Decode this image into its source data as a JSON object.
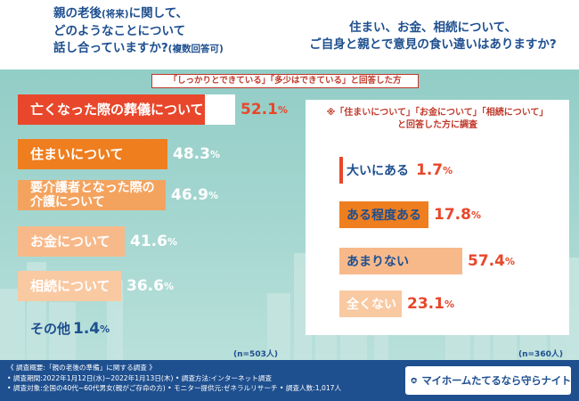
{
  "header": {
    "left_title": "親の老後(将来)に関して、どのようなことについて話し合っていますか?(複数回答可)",
    "left_line1": "親の老後",
    "left_line1_small": "(将来)",
    "left_line1_rest": "に関して、",
    "left_line2": "どのようなことについて",
    "left_line3": "話し合っていますか?",
    "left_line3_small": "(複数回答可)",
    "right_line1": "住まい、お金、相続について、",
    "right_line2": "ご自身と親とで意見の食い違いはありますか?"
  },
  "left_chart_note": "「しっかりとできている」「多少はできている」と回答した方",
  "right_chart_note_line1": "※「住まいについて」「お金について」「相続について」",
  "right_chart_note_line2": "と回答した方に調査",
  "colors": {
    "panel": "#a6d7d1",
    "red": "#e8472b",
    "orange1": "#ef7e1f",
    "orange2": "#f4a35f",
    "orange3": "#f7b98a",
    "orange4": "#f9c9a2",
    "text_blue": "#1e4f8f",
    "pct_red": "#e8472b",
    "pct_white": "#ffffff"
  },
  "chart_data": [
    {
      "type": "bar",
      "orientation": "horizontal",
      "title": "親の老後(将来)に関して、どのようなことについて話し合っていますか?(複数回答可)",
      "categories": [
        "亡くなった際の葬儀について",
        "住まいについて",
        "要介護者となった際の介護について",
        "お金について",
        "相続について",
        "その他"
      ],
      "values": [
        52.1,
        48.3,
        46.9,
        41.6,
        36.6,
        1.4
      ],
      "labels": [
        "52.1%",
        "48.3%",
        "46.9%",
        "41.6%",
        "36.6%",
        "1.4%"
      ],
      "unit": "%",
      "xlim": [
        0,
        60
      ],
      "n": "(n=503人)"
    },
    {
      "type": "bar",
      "orientation": "horizontal",
      "title": "住まい、お金、相続について、ご自身と親とで意見の食い違いはありますか?",
      "categories": [
        "大いにある",
        "ある程度ある",
        "あまりない",
        "全くない"
      ],
      "values": [
        1.7,
        17.8,
        57.4,
        23.1
      ],
      "labels": [
        "1.7%",
        "17.8%",
        "57.4%",
        "23.1%"
      ],
      "unit": "%",
      "xlim": [
        0,
        60
      ],
      "n": "(n=360人)"
    }
  ],
  "left_bars": [
    {
      "line1": "亡くなった際の葬儀について",
      "line2": "",
      "pct_main": "52.1",
      "pct_unit": "%"
    },
    {
      "line1": "住まいについて",
      "line2": "",
      "pct_main": "48.3",
      "pct_unit": "%"
    },
    {
      "line1": "要介護者となった際の",
      "line2": "介護について",
      "pct_main": "46.9",
      "pct_unit": "%"
    },
    {
      "line1": "お金について",
      "line2": "",
      "pct_main": "41.6",
      "pct_unit": "%"
    },
    {
      "line1": "相続について",
      "line2": "",
      "pct_main": "36.6",
      "pct_unit": "%"
    },
    {
      "line1": "その他",
      "line2": "",
      "pct_main": "1.4",
      "pct_unit": "%"
    }
  ],
  "right_bars": [
    {
      "label": "大いにある",
      "pct_main": "1.7",
      "pct_unit": "%"
    },
    {
      "label": "ある程度ある",
      "pct_main": "17.8",
      "pct_unit": "%"
    },
    {
      "label": "あまりない",
      "pct_main": "57.4",
      "pct_unit": "%"
    },
    {
      "label": "全くない",
      "pct_main": "23.1",
      "pct_unit": "%"
    }
  ],
  "footer": {
    "line1": "《 調査概要:「親の老後の準備」に関する調査 》",
    "line2": "• 調査期間:2022年1月12日(水)~2022年1月13日(木) • 調査方法:インターネット調査",
    "line3": "• 調査対象:全国の40代~60代男女(親がご存命の方) • モニター提供元:ゼネラルリサーチ • 調査人数:1,017人"
  },
  "logo": {
    "text": "マイホームたてるなら守らナイト",
    "icon": "house-shield-icon"
  }
}
